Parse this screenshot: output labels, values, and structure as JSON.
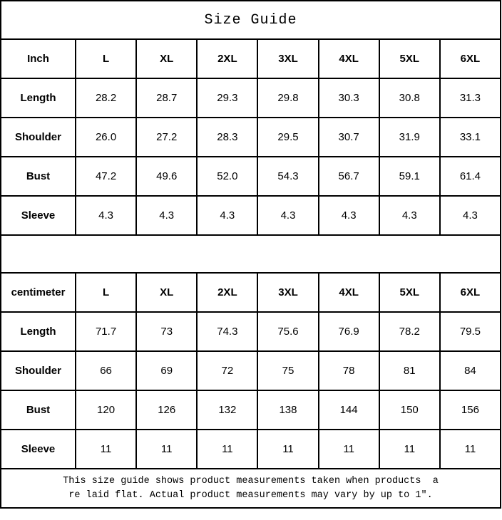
{
  "title": "Size Guide",
  "tables": [
    {
      "unit_label": "Inch",
      "sizes": [
        "L",
        "XL",
        "2XL",
        "3XL",
        "4XL",
        "5XL",
        "6XL"
      ],
      "rows": [
        {
          "label": "Length",
          "values": [
            "28.2",
            "28.7",
            "29.3",
            "29.8",
            "30.3",
            "30.8",
            "31.3"
          ]
        },
        {
          "label": "Shoulder",
          "values": [
            "26.0",
            "27.2",
            "28.3",
            "29.5",
            "30.7",
            "31.9",
            "33.1"
          ]
        },
        {
          "label": "Bust",
          "values": [
            "47.2",
            "49.6",
            "52.0",
            "54.3",
            "56.7",
            "59.1",
            "61.4"
          ]
        },
        {
          "label": "Sleeve",
          "values": [
            "4.3",
            "4.3",
            "4.3",
            "4.3",
            "4.3",
            "4.3",
            "4.3"
          ]
        }
      ]
    },
    {
      "unit_label": "centimeter",
      "sizes": [
        "L",
        "XL",
        "2XL",
        "3XL",
        "4XL",
        "5XL",
        "6XL"
      ],
      "rows": [
        {
          "label": "Length",
          "values": [
            "71.7",
            "73",
            "74.3",
            "75.6",
            "76.9",
            "78.2",
            "79.5"
          ]
        },
        {
          "label": "Shoulder",
          "values": [
            "66",
            "69",
            "72",
            "75",
            "78",
            "81",
            "84"
          ]
        },
        {
          "label": "Bust",
          "values": [
            "120",
            "126",
            "132",
            "138",
            "144",
            "150",
            "156"
          ]
        },
        {
          "label": "Sleeve",
          "values": [
            "11",
            "11",
            "11",
            "11",
            "11",
            "11",
            "11"
          ]
        }
      ]
    }
  ],
  "footer": {
    "line1": "This size guide shows product measurements taken when products  a",
    "line2": "re laid flat. Actual product measurements may vary by up to 1″."
  },
  "colors": {
    "border": "#000000",
    "background": "#ffffff",
    "text": "#000000"
  }
}
